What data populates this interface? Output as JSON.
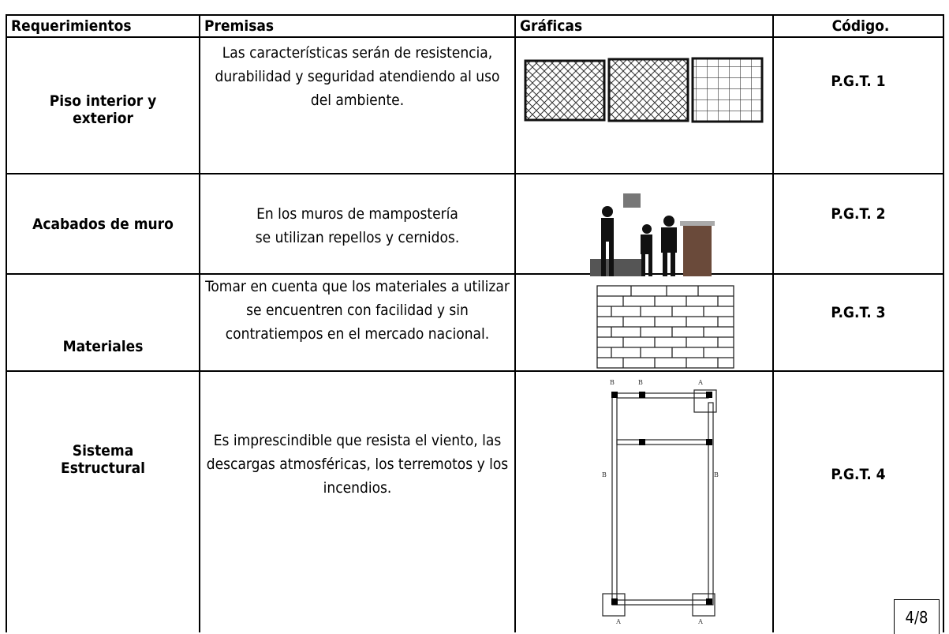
{
  "table": {
    "header": [
      "Requerimientos",
      "Premisas",
      "Gráficas",
      "Código."
    ],
    "rows": [
      [
        "Piso interior y exterior",
        "Las características serán de resistencia, durabilidad y seguridad atendiendo  al uso  del ambiente.",
        "P.G.T. 1"
      ],
      [
        "Acabados de muro",
        "En los muros de mampostería se utilizan repellos y  cernidos.",
        "P.G.T. 2"
      ],
      [
        "Materiales",
        "Tomar en cuenta que los materiales a utilizar se encuentren con facilidad y sin contratiempos  en el mercado nacional.",
        "P.G.T. 3"
      ],
      [
        "Sistema Estructural",
        "Es imprescindible que resista el viento, las descargas atmosféricas, los terremotos y los incendios.",
        "P.G.T. 4"
      ]
    ]
  },
  "figure_labels": [
    "B",
    "B",
    "A",
    "B",
    "B",
    "A",
    "A"
  ],
  "page_number": "4/8"
}
